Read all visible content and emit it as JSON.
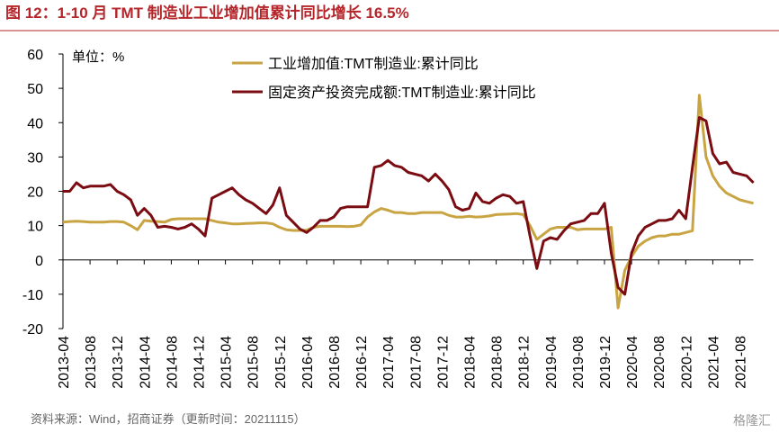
{
  "chart_data": {
    "type": "line",
    "title": "图 12：1-10 月 TMT 制造业工业增加值累计同比增长 16.5%",
    "unit_label": "单位：%",
    "source": "资料来源：Wind，招商证券（更新时间：20211115）",
    "watermark": "格隆汇",
    "categories": [
      "2013-04",
      null,
      null,
      null,
      "2013-08",
      null,
      null,
      null,
      "2013-12",
      null,
      null,
      null,
      "2014-04",
      null,
      null,
      null,
      "2014-08",
      null,
      null,
      null,
      "2014-12",
      null,
      null,
      null,
      "2015-04",
      null,
      null,
      null,
      "2015-08",
      null,
      null,
      null,
      "2015-12",
      null,
      null,
      null,
      "2016-04",
      null,
      null,
      null,
      "2016-08",
      null,
      null,
      null,
      "2016-12",
      null,
      null,
      null,
      "2017-04",
      null,
      null,
      null,
      "2017-08",
      null,
      null,
      null,
      "2017-12",
      null,
      null,
      null,
      "2018-04",
      null,
      null,
      null,
      "2018-08",
      null,
      null,
      null,
      "2018-12",
      null,
      null,
      null,
      "2019-04",
      null,
      null,
      null,
      "2019-08",
      null,
      null,
      null,
      "2019-12",
      null,
      null,
      null,
      "2020-04",
      null,
      null,
      null,
      "2020-08",
      null,
      null,
      null,
      "2020-12",
      null,
      null,
      null,
      "2021-04",
      null,
      null,
      null,
      "2021-08",
      null,
      null
    ],
    "series": [
      {
        "name": "工业增加值:TMT制造业:累计同比",
        "color": "#c9a443",
        "values": [
          11,
          11.2,
          11.3,
          11.2,
          11,
          11,
          11,
          11.2,
          11.2,
          11,
          10,
          8.8,
          11.5,
          11.3,
          11.2,
          11,
          11.8,
          12,
          12,
          12,
          12,
          12,
          11.5,
          11,
          10.8,
          10.5,
          10.5,
          10.6,
          10.7,
          10.8,
          10.8,
          10.5,
          9.5,
          8.8,
          8.6,
          8.6,
          8.7,
          9.5,
          9.8,
          9.8,
          9.8,
          9.8,
          9.7,
          9.8,
          10.2,
          12.5,
          14,
          15,
          14.5,
          13.8,
          13.8,
          13.5,
          13.5,
          13.8,
          13.8,
          13.8,
          13.8,
          13,
          12.5,
          12.5,
          12.7,
          12.5,
          12.6,
          12.8,
          13.2,
          13.3,
          13.4,
          13.5,
          13.2,
          10,
          6,
          7.5,
          9,
          9.5,
          9.5,
          9.5,
          8.8,
          9,
          9,
          9,
          9,
          9.5,
          -14,
          -3,
          1,
          4,
          5.5,
          6.5,
          7,
          7,
          7.5,
          7.5,
          8,
          8.5,
          48,
          30,
          24.5,
          21.5,
          19.5,
          18.5,
          17.5,
          17,
          16.5
        ]
      },
      {
        "name": "固定资产投资完成额:TMT制造业:累计同比",
        "color": "#7a0c12",
        "values": [
          20,
          20,
          22.5,
          21,
          21.5,
          21.5,
          21.5,
          22,
          20,
          19,
          17.5,
          13,
          15,
          13,
          9.5,
          9.8,
          9.5,
          9,
          9.5,
          10.5,
          9,
          7,
          18,
          19,
          20,
          21,
          19,
          17.5,
          16.5,
          15,
          13.5,
          16,
          21,
          13,
          11,
          9,
          8,
          9.5,
          11.5,
          11.5,
          12.5,
          15,
          15.5,
          15.5,
          15.5,
          15.5,
          27,
          27.5,
          29,
          27.5,
          27,
          25.5,
          25,
          24.5,
          23,
          25,
          23,
          20.5,
          15.5,
          14.5,
          15,
          19.5,
          17,
          16.5,
          18,
          19,
          18.5,
          16.5,
          17,
          7,
          -2.5,
          5.5,
          6.5,
          6,
          8.5,
          10.5,
          11,
          11.5,
          13.5,
          13.5,
          16.5,
          2,
          -8,
          -10,
          2,
          7,
          9.5,
          10.5,
          11.5,
          11.5,
          12,
          14.5,
          12,
          27,
          41.5,
          40.5,
          31,
          28,
          28.5,
          25.5,
          25,
          24.5,
          22.5
        ]
      }
    ],
    "ylim": [
      -20,
      60
    ],
    "yticks": [
      -20,
      -10,
      0,
      10,
      20,
      30,
      40,
      50,
      60
    ]
  }
}
